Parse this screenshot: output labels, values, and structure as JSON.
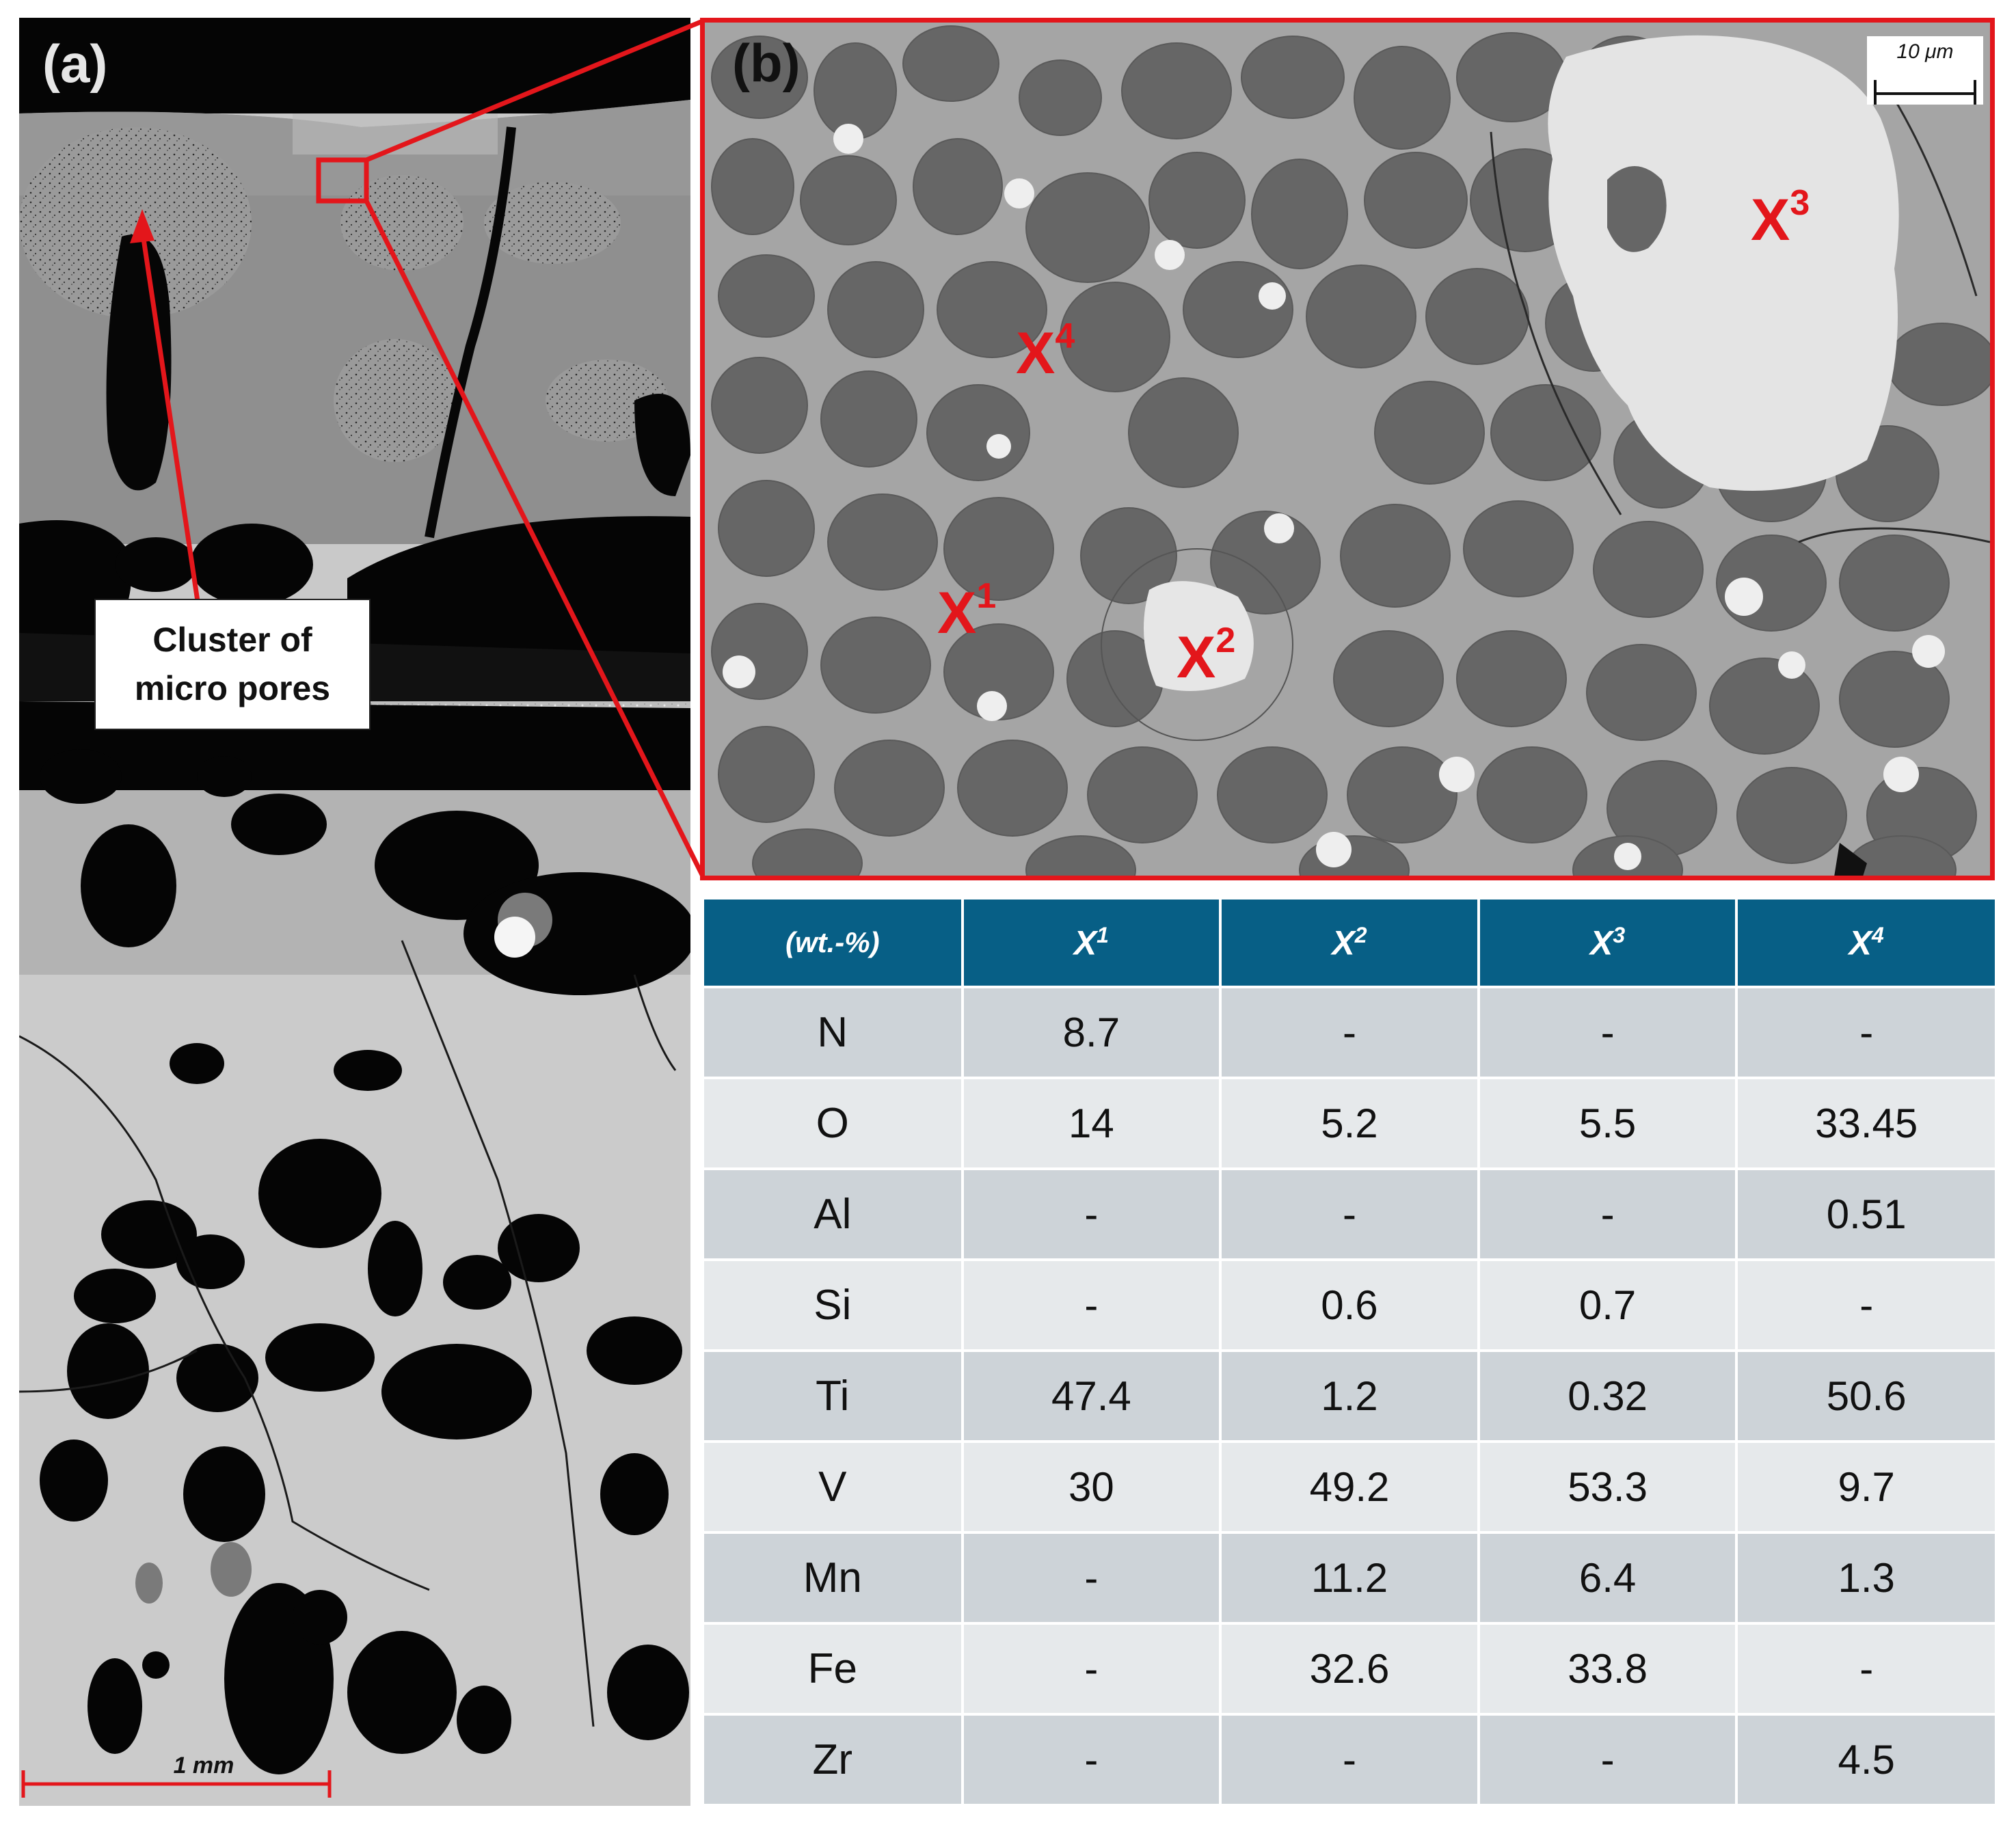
{
  "panel_a": {
    "label": "(a)",
    "callout_line1": "Cluster of",
    "callout_line2": "micro pores",
    "scale_bar": "1 mm"
  },
  "panel_b": {
    "label": "(b)",
    "scale_bar": "10 μm",
    "markers": [
      {
        "letter": "X",
        "sup": "1"
      },
      {
        "letter": "X",
        "sup": "2"
      },
      {
        "letter": "X",
        "sup": "3"
      },
      {
        "letter": "X",
        "sup": "4"
      }
    ]
  },
  "colors": {
    "highlight_red": "#e3161b",
    "table_header": "#075f86",
    "row_dark": "#cdd3d8",
    "row_light": "#e6e9eb"
  },
  "table": {
    "header": {
      "unit": "(wt.-%)",
      "letter": "X",
      "sups": [
        "1",
        "2",
        "3",
        "4"
      ]
    },
    "rows": [
      {
        "element": "N",
        "values": [
          "8.7",
          "-",
          "-",
          "-"
        ]
      },
      {
        "element": "O",
        "values": [
          "14",
          "5.2",
          "5.5",
          "33.45"
        ]
      },
      {
        "element": "Al",
        "values": [
          "-",
          "-",
          "-",
          "0.51"
        ]
      },
      {
        "element": "Si",
        "values": [
          "-",
          "0.6",
          "0.7",
          "-"
        ]
      },
      {
        "element": "Ti",
        "values": [
          "47.4",
          "1.2",
          "0.32",
          "50.6"
        ]
      },
      {
        "element": "V",
        "values": [
          "30",
          "49.2",
          "53.3",
          "9.7"
        ]
      },
      {
        "element": "Mn",
        "values": [
          "-",
          "11.2",
          "6.4",
          "1.3"
        ]
      },
      {
        "element": "Fe",
        "values": [
          "-",
          "32.6",
          "33.8",
          "-"
        ]
      },
      {
        "element": "Zr",
        "values": [
          "-",
          "-",
          "-",
          "4.5"
        ]
      }
    ]
  }
}
